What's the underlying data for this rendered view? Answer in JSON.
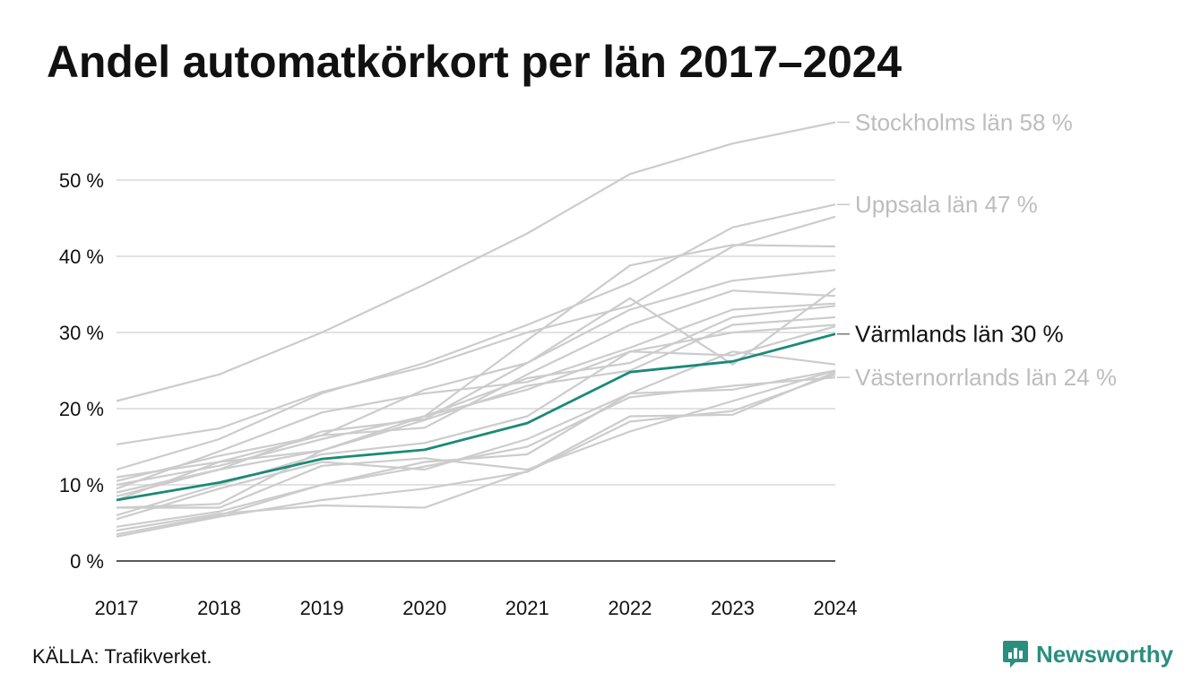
{
  "title": "Andel automatkörkort per län 2017–2024",
  "source": "KÄLLA: Trafikverket.",
  "brand": {
    "name": "Newsworthy",
    "icon": "newsworthy-logo-icon",
    "color": "#2a8f7f"
  },
  "chart_data": {
    "type": "line",
    "x": [
      "2017",
      "2018",
      "2019",
      "2020",
      "2021",
      "2022",
      "2023",
      "2024"
    ],
    "y_ticks": [
      "0 %",
      "10 %",
      "20 %",
      "30 %",
      "40 %",
      "50 %"
    ],
    "ylim": [
      0,
      60
    ],
    "grid": true,
    "highlight_color": "#1a8a78",
    "background_color": "#cccccc",
    "labeled": [
      {
        "name": "Stockholms län",
        "label": "Stockholms län 58 %",
        "values": [
          21,
          24.5,
          30,
          36.3,
          43,
          50.8,
          54.8,
          57.6
        ],
        "highlight": false
      },
      {
        "name": "Uppsala län",
        "label": "Uppsala län 47 %",
        "values": [
          12,
          16,
          22,
          26,
          31,
          36.5,
          43.8,
          46.8
        ],
        "highlight": false
      },
      {
        "name": "Värmlands län",
        "label": "Värmlands län 30 %",
        "values": [
          8,
          10.3,
          13.4,
          14.6,
          18.1,
          24.8,
          26.2,
          29.8
        ],
        "highlight": true
      },
      {
        "name": "Västernorrlands län",
        "label": "Västernorrlands län 24 %",
        "values": [
          3.5,
          6,
          10,
          12.4,
          15,
          21.5,
          23,
          24.1
        ],
        "highlight": false
      }
    ],
    "others": [
      [
        15.3,
        17.4,
        22.2,
        25.5,
        30,
        33.5,
        41.3,
        45.2
      ],
      [
        10,
        12.5,
        16,
        19,
        29,
        38.8,
        41.5,
        41.3
      ],
      [
        11,
        13,
        16.5,
        22.5,
        26,
        33,
        36.8,
        38.2
      ],
      [
        9,
        12,
        17,
        18.6,
        26,
        34.5,
        25.8,
        35.8
      ],
      [
        10.5,
        13.8,
        16.5,
        17.5,
        24.5,
        31,
        35.5,
        34.8
      ],
      [
        9.5,
        14.4,
        19.5,
        22,
        23.5,
        28,
        33,
        33.8
      ],
      [
        8.5,
        12,
        14.5,
        19,
        24,
        26,
        32,
        33.5
      ],
      [
        7,
        7.5,
        14.5,
        18.5,
        23,
        25,
        31,
        32
      ],
      [
        8,
        13,
        14.5,
        19,
        22.5,
        27.5,
        30,
        31
      ],
      [
        6,
        10,
        14,
        15.5,
        19,
        27.5,
        27,
        30.8
      ],
      [
        5.5,
        9.5,
        13,
        12,
        16,
        22,
        22.5,
        25
      ],
      [
        4.5,
        6.5,
        10,
        13,
        14,
        22,
        27.5,
        25.8
      ],
      [
        7,
        7,
        12.5,
        13.5,
        12,
        17,
        21,
        25
      ],
      [
        3.2,
        5.8,
        8,
        9.5,
        11.7,
        18.3,
        19.7,
        24.5
      ],
      [
        4,
        6.2,
        7.3,
        7,
        11.8,
        19,
        19.2,
        24.8
      ]
    ]
  }
}
